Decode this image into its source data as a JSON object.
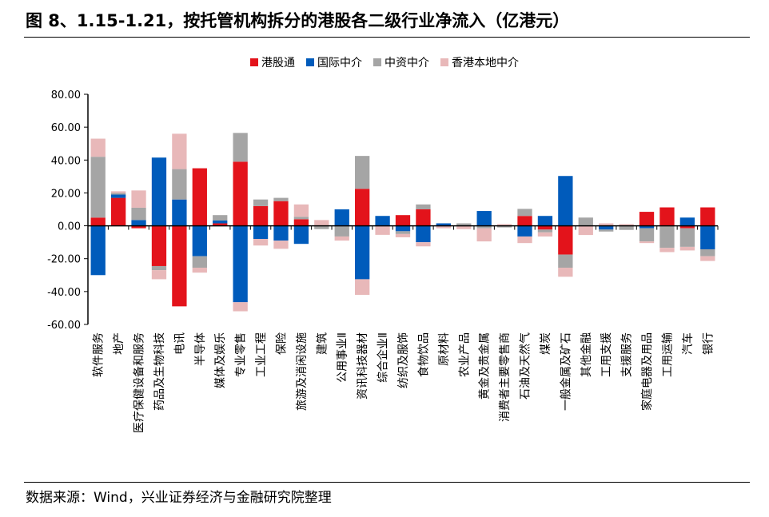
{
  "title": "图 8、1.15-1.21，按托管机构拆分的港股各二级行业净流入（亿港元）",
  "source": "数据来源：Wind，兴业证券经济与金融研究院整理",
  "chart_data": {
    "type": "bar",
    "stacked": true,
    "title": "1.15-1.21，按托管机构拆分的港股各二级行业净流入（亿港元）",
    "xlabel": "",
    "ylabel": "",
    "ylim": [
      -60,
      80
    ],
    "yticks": [
      80,
      60,
      40,
      20,
      0,
      -20,
      -40,
      -60
    ],
    "ytick_labels": [
      "80.00",
      "60.00",
      "40.00",
      "20.00",
      "0.00",
      "-20.00",
      "-40.00",
      "-60.00"
    ],
    "grid": false,
    "legend_position": "top",
    "categories": [
      "软件服务",
      "地产",
      "医疗保健设备和服务",
      "药品及生物科技",
      "电讯",
      "半导体",
      "媒体及娱乐",
      "专业零售",
      "工业工程",
      "保险",
      "旅游及消闲设施",
      "建筑",
      "公用事业Ⅱ",
      "资讯科技器材",
      "综合企业Ⅱ",
      "纺织及服饰",
      "食物饮品",
      "原材料",
      "农业产品",
      "黄金及贵金属",
      "消费者主要零售商",
      "石油及天然气",
      "煤炭",
      "一般金属及矿石",
      "其他金融",
      "工用支援",
      "支援服务",
      "家庭电器及用品",
      "工用运输",
      "汽车",
      "银行"
    ],
    "series": [
      {
        "name": "港股通",
        "color": "#e3131b",
        "values": [
          5,
          17,
          -1.5,
          -24.5,
          -49,
          35,
          1.5,
          39,
          12,
          15,
          4,
          0,
          0,
          22.5,
          0,
          6.5,
          10,
          0,
          0,
          0,
          0,
          6,
          -2.3,
          -17.5,
          0,
          0,
          0,
          8.5,
          11.2,
          -1.5,
          11.2
        ]
      },
      {
        "name": "国际中介",
        "color": "#005bbb",
        "values": [
          -30,
          2,
          3.5,
          41.5,
          16,
          -18.5,
          1.7,
          -46.5,
          -8,
          -9,
          -11,
          0,
          10,
          -32.5,
          6,
          -3.3,
          -10,
          1.5,
          0,
          9,
          0,
          -6.5,
          6,
          30.3,
          0,
          -2.3,
          0,
          -1.5,
          0,
          5,
          -14.3
        ]
      },
      {
        "name": "中资中介",
        "color": "#a5a5a5",
        "values": [
          37,
          1,
          7.5,
          -2.5,
          18.5,
          -7,
          3.3,
          17.5,
          4,
          2,
          1.5,
          -2,
          -6.5,
          20,
          0,
          -1.7,
          3,
          0,
          1.5,
          -1.5,
          -1,
          4.3,
          -1.7,
          -8,
          5,
          -1.2,
          -2.5,
          -8,
          -13.4,
          -11.3,
          -4.2
        ]
      },
      {
        "name": "香港本地中介",
        "color": "#e8b8b9",
        "values": [
          11,
          1,
          10.5,
          -5.5,
          21.5,
          -3,
          0,
          -5.5,
          -4,
          -5,
          7.5,
          3.5,
          -2.5,
          -9.5,
          -5.5,
          -2,
          -2.5,
          -1.5,
          -2,
          -8,
          1,
          -4,
          -2.5,
          -5.5,
          -5.6,
          1.5,
          1,
          -1,
          -2.6,
          -2.2,
          -2.9
        ]
      }
    ]
  }
}
